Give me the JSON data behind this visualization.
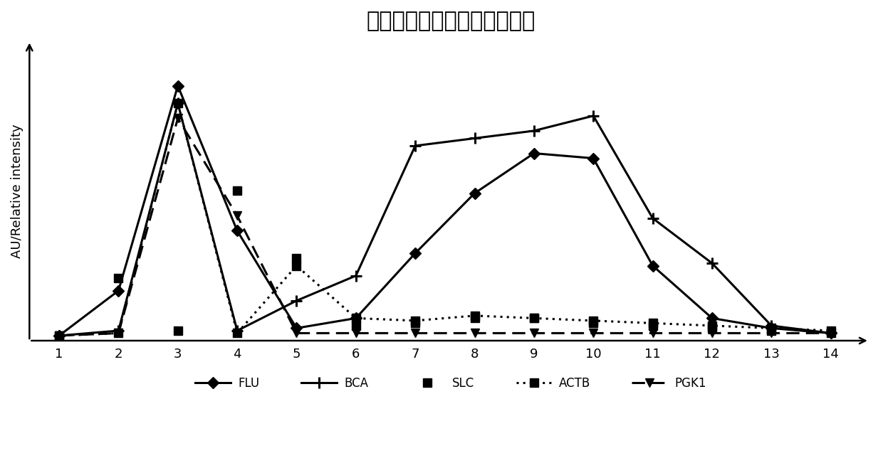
{
  "title": "荧光脂质体示踪的排阻色谱法",
  "ylabel": "AU/Relative intensity",
  "x": [
    1,
    2,
    3,
    4,
    5,
    6,
    7,
    8,
    9,
    10,
    11,
    12,
    13,
    14
  ],
  "FLU": [
    0,
    0.18,
    1.0,
    0.42,
    0.03,
    0.07,
    0.33,
    0.57,
    0.73,
    0.71,
    0.28,
    0.07,
    0.03,
    0.01
  ],
  "BCA": [
    0,
    0.02,
    0.93,
    0.02,
    0.14,
    0.24,
    0.76,
    0.79,
    0.82,
    0.88,
    0.47,
    0.29,
    0.04,
    0.01
  ],
  "SLC": [
    0,
    0.23,
    0.02,
    0.58,
    0.31,
    0.04,
    0.05,
    0.07,
    0.07,
    0.05,
    0.04,
    0.03,
    0.02,
    0.01
  ],
  "ACTB": [
    0,
    0.01,
    0.93,
    0.01,
    0.28,
    0.07,
    0.06,
    0.08,
    0.07,
    0.06,
    0.05,
    0.04,
    0.03,
    0.02
  ],
  "PGK1": [
    0,
    0.01,
    0.87,
    0.48,
    0.01,
    0.01,
    0.01,
    0.01,
    0.01,
    0.01,
    0.01,
    0.01,
    0.01,
    0.01
  ],
  "background_color": "#ffffff",
  "title_fontsize": 22,
  "ylabel_fontsize": 13,
  "tick_fontsize": 13,
  "lw": 2.2,
  "ms": 8
}
